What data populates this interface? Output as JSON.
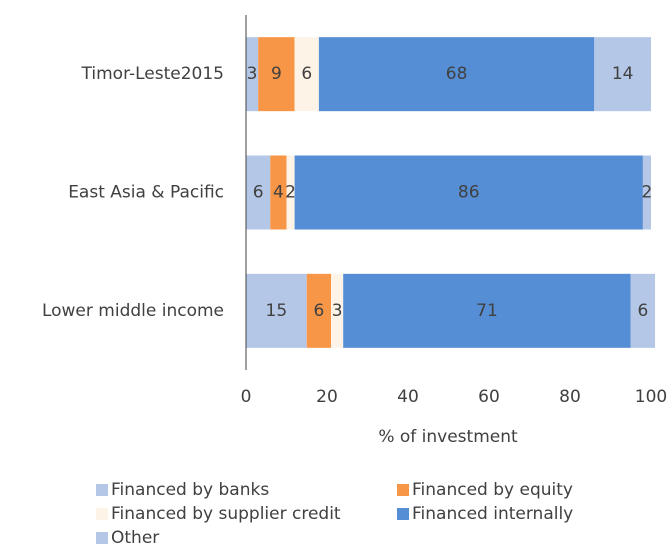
{
  "chart_data": {
    "type": "stacked_bar_horizontal",
    "categories": [
      "Timor-Leste2015",
      "East Asia & Pacific",
      "Lower middle income"
    ],
    "series": [
      {
        "name": "Financed by banks",
        "color": "#b4c7e7",
        "values": [
          3,
          6,
          15
        ]
      },
      {
        "name": "Financed by equity",
        "color": "#f79646",
        "values": [
          9,
          4,
          6
        ]
      },
      {
        "name": "Financed by supplier credit",
        "color": "#fdf3e7",
        "values": [
          6,
          2,
          3
        ]
      },
      {
        "name": "Financed internally",
        "color": "#558ed5",
        "values": [
          68,
          86,
          71
        ]
      },
      {
        "name": "Other",
        "color": "#b4c7e7",
        "values": [
          14,
          2,
          6
        ]
      }
    ],
    "xlabel": "% of investment",
    "xlim": [
      0,
      100
    ],
    "xticks": [
      0,
      20,
      40,
      60,
      80,
      100
    ],
    "grid": false
  }
}
